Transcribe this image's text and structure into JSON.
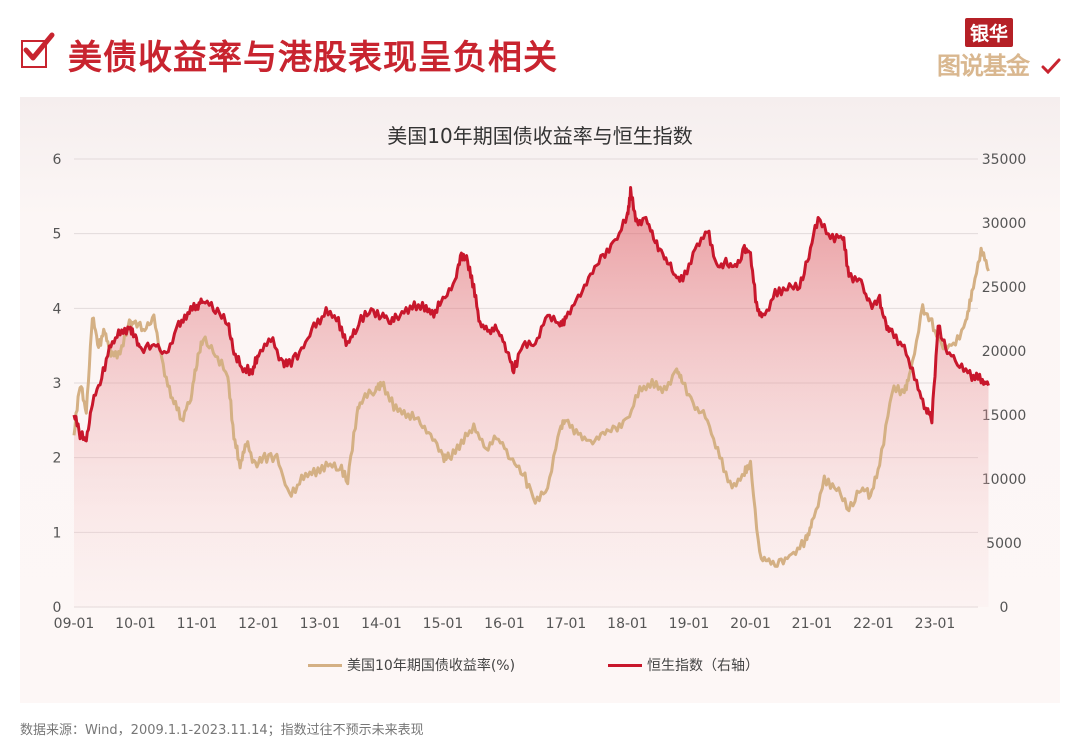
{
  "header": {
    "title": "美债收益率与港股表现呈负相关",
    "logo_top": "银华",
    "logo_bottom": "图说基金"
  },
  "chart": {
    "title": "美国10年期国债收益率与恒生指数",
    "legend": [
      {
        "label": "美国10年期国债收益率(%)",
        "color": "#d4b084"
      },
      {
        "label": "恒生指数（右轴）",
        "color": "#c8172c"
      }
    ]
  },
  "footer": {
    "source": "数据来源：Wind，2009.1.1-2023.11.14；指数过往不预示未来表现"
  },
  "colors": {
    "accent": "#c8242f",
    "yield_line": "#d4b084",
    "hsi_line": "#c8172c",
    "grid": "#e2dada"
  },
  "chart_data": {
    "type": "line",
    "title": "美国10年期国债收益率与恒生指数",
    "xlabel": "",
    "ylabel": "",
    "ylabel_right": "",
    "x_ticks": [
      "09-01",
      "10-01",
      "11-01",
      "12-01",
      "13-01",
      "14-01",
      "15-01",
      "16-01",
      "17-01",
      "18-01",
      "19-01",
      "20-01",
      "21-01",
      "22-01",
      "23-01"
    ],
    "ylim": [
      0,
      6
    ],
    "yticks": [
      0,
      1,
      2,
      3,
      4,
      5,
      6
    ],
    "ylim_right": [
      0,
      35000
    ],
    "yticks_right": [
      0,
      5000,
      10000,
      15000,
      20000,
      25000,
      30000,
      35000
    ],
    "grid": true,
    "legend_position": "bottom",
    "series": [
      {
        "name": "美国10年期国债收益率(%)",
        "axis": "left",
        "x": [
          2009.0,
          2009.1,
          2009.2,
          2009.3,
          2009.4,
          2009.5,
          2009.6,
          2009.75,
          2009.9,
          2010.0,
          2010.15,
          2010.3,
          2010.45,
          2010.6,
          2010.75,
          2010.9,
          2011.0,
          2011.1,
          2011.3,
          2011.5,
          2011.6,
          2011.7,
          2011.8,
          2011.95,
          2012.1,
          2012.3,
          2012.5,
          2012.7,
          2012.9,
          2013.1,
          2013.3,
          2013.45,
          2013.6,
          2013.7,
          2013.9,
          2014.0,
          2014.2,
          2014.4,
          2014.6,
          2014.8,
          2015.0,
          2015.1,
          2015.3,
          2015.5,
          2015.7,
          2015.9,
          2016.1,
          2016.3,
          2016.5,
          2016.7,
          2016.9,
          2017.0,
          2017.2,
          2017.4,
          2017.6,
          2017.8,
          2018.0,
          2018.2,
          2018.4,
          2018.6,
          2018.8,
          2018.9,
          2019.1,
          2019.3,
          2019.5,
          2019.7,
          2019.9,
          2020.0,
          2020.15,
          2020.3,
          2020.5,
          2020.7,
          2020.9,
          2021.0,
          2021.2,
          2021.4,
          2021.6,
          2021.8,
          2021.95,
          2022.1,
          2022.3,
          2022.5,
          2022.6,
          2022.8,
          2022.95,
          2023.1,
          2023.3,
          2023.5,
          2023.6,
          2023.75,
          2023.87
        ],
        "values": [
          2.3,
          3.0,
          2.6,
          3.9,
          3.5,
          3.7,
          3.4,
          3.4,
          3.8,
          3.8,
          3.7,
          3.9,
          3.2,
          2.8,
          2.5,
          2.8,
          3.3,
          3.6,
          3.4,
          3.1,
          2.3,
          1.9,
          2.2,
          1.9,
          2.0,
          2.0,
          1.5,
          1.7,
          1.8,
          1.9,
          1.9,
          1.7,
          2.6,
          2.8,
          2.9,
          3.0,
          2.7,
          2.6,
          2.5,
          2.3,
          2.0,
          2.0,
          2.2,
          2.4,
          2.1,
          2.3,
          2.0,
          1.8,
          1.4,
          1.6,
          2.4,
          2.5,
          2.3,
          2.2,
          2.3,
          2.4,
          2.5,
          2.9,
          3.0,
          2.9,
          3.2,
          3.0,
          2.7,
          2.5,
          2.0,
          1.6,
          1.8,
          1.9,
          0.7,
          0.6,
          0.6,
          0.7,
          0.9,
          1.1,
          1.7,
          1.6,
          1.3,
          1.6,
          1.5,
          1.9,
          2.9,
          2.9,
          3.1,
          4.0,
          3.8,
          3.5,
          3.5,
          3.8,
          4.2,
          4.8,
          4.5
        ]
      },
      {
        "name": "恒生指数（右轴）",
        "axis": "right",
        "x": [
          2009.0,
          2009.1,
          2009.2,
          2009.3,
          2009.45,
          2009.6,
          2009.75,
          2009.9,
          2010.0,
          2010.1,
          2010.3,
          2010.5,
          2010.7,
          2010.85,
          2011.0,
          2011.1,
          2011.3,
          2011.5,
          2011.6,
          2011.75,
          2011.9,
          2012.0,
          2012.2,
          2012.4,
          2012.5,
          2012.7,
          2012.9,
          2013.1,
          2013.3,
          2013.45,
          2013.6,
          2013.8,
          2014.0,
          2014.15,
          2014.3,
          2014.5,
          2014.7,
          2014.85,
          2015.0,
          2015.2,
          2015.3,
          2015.4,
          2015.5,
          2015.6,
          2015.75,
          2015.9,
          2016.05,
          2016.15,
          2016.3,
          2016.5,
          2016.7,
          2016.9,
          2017.0,
          2017.2,
          2017.4,
          2017.6,
          2017.8,
          2018.0,
          2018.05,
          2018.15,
          2018.3,
          2018.45,
          2018.6,
          2018.75,
          2018.9,
          2019.1,
          2019.3,
          2019.45,
          2019.6,
          2019.75,
          2019.9,
          2020.0,
          2020.1,
          2020.2,
          2020.4,
          2020.6,
          2020.8,
          2020.95,
          2021.1,
          2021.3,
          2021.5,
          2021.6,
          2021.8,
          2021.95,
          2022.1,
          2022.2,
          2022.3,
          2022.5,
          2022.7,
          2022.85,
          2022.95,
          2023.05,
          2023.2,
          2023.4,
          2023.6,
          2023.75,
          2023.87
        ],
        "values": [
          15000,
          13500,
          13000,
          16000,
          18000,
          20500,
          21500,
          21800,
          21000,
          20000,
          20500,
          19800,
          22000,
          23000,
          23500,
          24000,
          23300,
          22200,
          20000,
          18500,
          18500,
          19800,
          21000,
          19000,
          19000,
          20000,
          22000,
          23000,
          22300,
          20500,
          22000,
          23200,
          22800,
          22300,
          22800,
          23500,
          23500,
          23000,
          24000,
          25500,
          27500,
          27000,
          25000,
          22000,
          21500,
          21800,
          20000,
          18500,
          20500,
          20600,
          22900,
          22000,
          22500,
          24200,
          25800,
          27500,
          28500,
          30500,
          32500,
          30000,
          30500,
          28500,
          27500,
          26000,
          25500,
          28000,
          29500,
          26500,
          27000,
          26500,
          28000,
          27500,
          23500,
          22500,
          24500,
          25000,
          25000,
          27500,
          30500,
          28800,
          29000,
          26000,
          25200,
          23500,
          24000,
          22000,
          21500,
          20200,
          17500,
          15500,
          14700,
          22000,
          20000,
          19000,
          18000,
          17800,
          17300
        ]
      }
    ]
  }
}
